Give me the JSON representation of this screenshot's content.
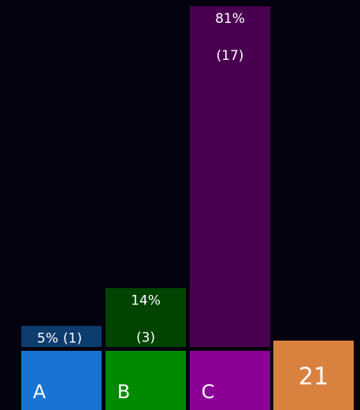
{
  "options": [
    {
      "label": "A",
      "percent": 5,
      "percent_label": "5%",
      "count_label": "(1)",
      "tile_color": "#1874d3",
      "bar_color": "#0d3c6e"
    },
    {
      "label": "B",
      "percent": 14,
      "percent_label": "14%",
      "count_label": "(3)",
      "tile_color": "#008a00",
      "bar_color": "#004400"
    },
    {
      "label": "C",
      "percent": 81,
      "percent_label": "81%",
      "count_label": "(17)",
      "tile_color": "#8c0095",
      "bar_color": "#4a0050"
    }
  ],
  "total": 21,
  "total_color": "#d9813f"
}
